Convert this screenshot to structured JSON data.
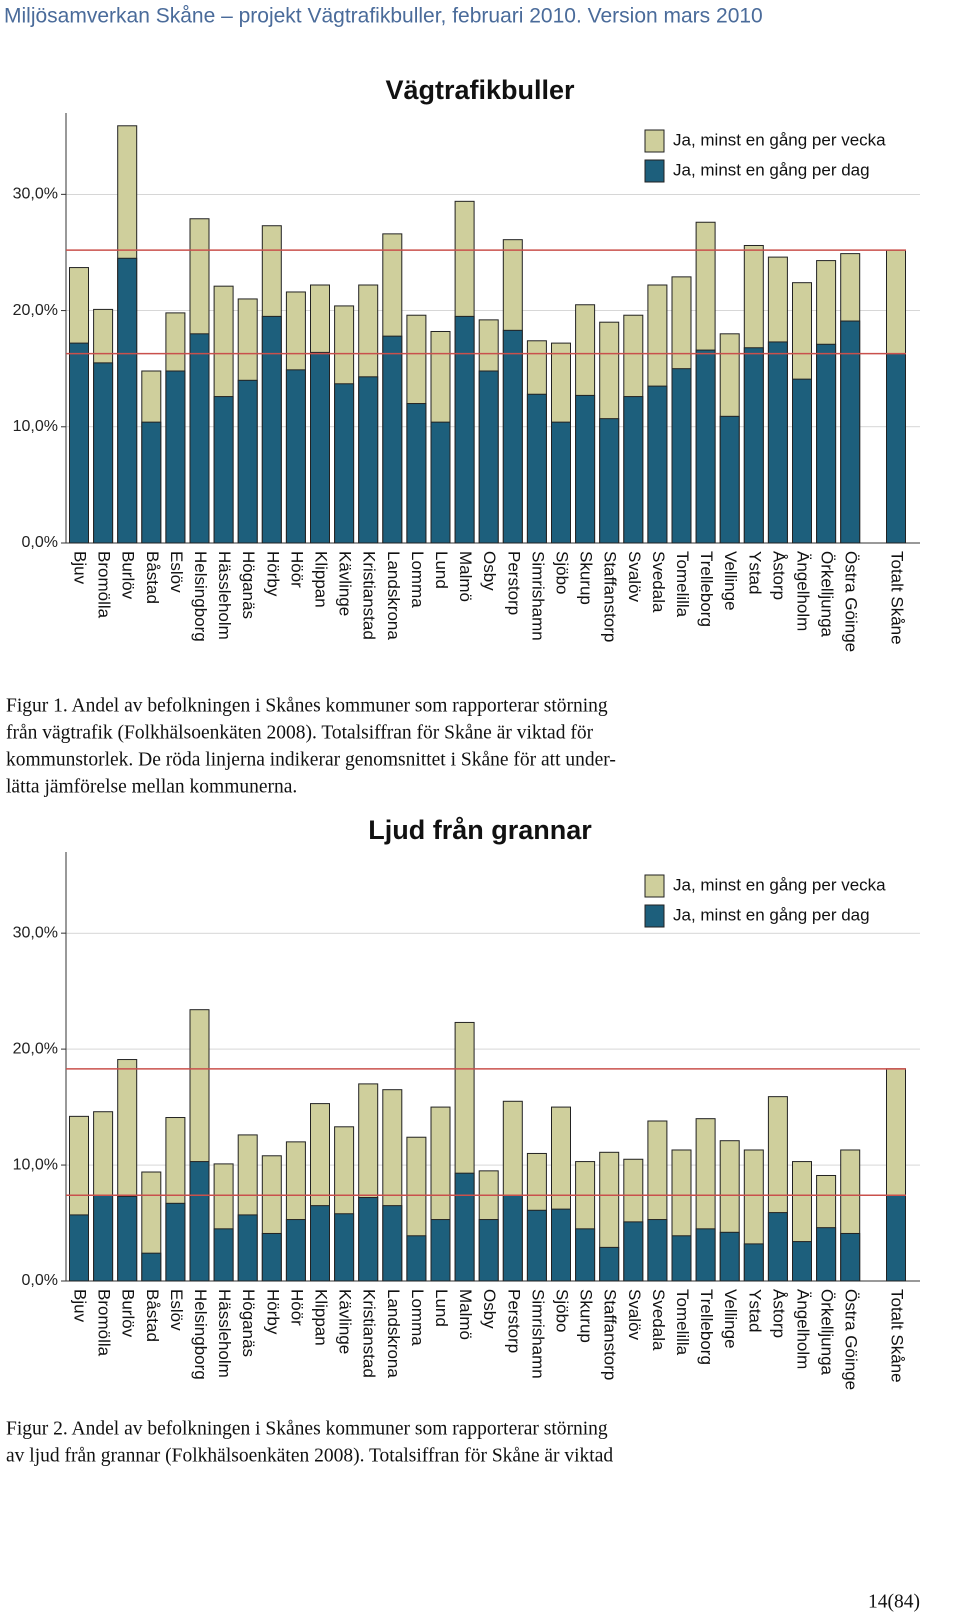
{
  "header": {
    "title": "Miljösamverkan Skåne – projekt Vägtrafikbuller, februari 2010. Version mars 2010"
  },
  "chart_data": [
    {
      "type": "bar",
      "barmode": "overlay",
      "title": "Vägtrafikbuller",
      "categories": [
        "Bjuv",
        "Bromölla",
        "Burlöv",
        "Båstad",
        "Eslöv",
        "Helsingborg",
        "Hässleholm",
        "Höganäs",
        "Hörby",
        "Höör",
        "Klippan",
        "Kävlinge",
        "Kristianstad",
        "Landskrona",
        "Lomma",
        "Lund",
        "Malmö",
        "Osby",
        "Perstorp",
        "Simrishamn",
        "Sjöbo",
        "Skurup",
        "Staffanstorp",
        "Svalöv",
        "Svedala",
        "Tomelilla",
        "Trelleborg",
        "Vellinge",
        "Ystad",
        "Åstorp",
        "Ängelholm",
        "Örkelljunga",
        "Östra Göinge",
        "Totalt Skåne"
      ],
      "series": [
        {
          "name": "Ja, minst en gång per vecka",
          "color": "#cfcf9c",
          "values": [
            23.7,
            20.1,
            35.9,
            14.8,
            19.8,
            27.9,
            22.1,
            21.0,
            27.3,
            21.6,
            22.2,
            20.4,
            22.2,
            26.6,
            19.6,
            18.2,
            29.4,
            19.2,
            26.1,
            17.4,
            17.2,
            20.5,
            19.0,
            19.6,
            22.2,
            22.9,
            27.6,
            18.0,
            25.6,
            24.6,
            22.4,
            24.3,
            24.9,
            25.2
          ]
        },
        {
          "name": "Ja, minst en gång per dag",
          "color": "#1d5f7c",
          "values": [
            17.2,
            15.5,
            24.5,
            10.4,
            14.8,
            18.0,
            12.6,
            14.0,
            19.5,
            14.9,
            16.4,
            13.7,
            14.3,
            17.8,
            12.0,
            10.4,
            19.5,
            14.8,
            18.3,
            12.8,
            10.4,
            12.7,
            10.7,
            12.6,
            13.5,
            15.0,
            16.6,
            10.9,
            16.8,
            17.3,
            14.1,
            17.1,
            19.1,
            16.3
          ]
        }
      ],
      "ylim": [
        0,
        37
      ],
      "yticks": [
        {
          "value": 0,
          "label": "0,0%"
        },
        {
          "value": 10,
          "label": "10,0%"
        },
        {
          "value": 20,
          "label": "20,0%"
        },
        {
          "value": 30,
          "label": "30,0%"
        }
      ],
      "grid": true,
      "legend": "top-right",
      "reference_lines": [
        {
          "value": 25.2,
          "color": "#c9504c"
        },
        {
          "value": 16.3,
          "color": "#c9504c"
        }
      ]
    },
    {
      "type": "bar",
      "barmode": "overlay",
      "title": "Ljud från grannar",
      "categories": [
        "Bjuv",
        "Bromölla",
        "Burlöv",
        "Båstad",
        "Eslöv",
        "Helsingborg",
        "Hässleholm",
        "Höganäs",
        "Hörby",
        "Höör",
        "Klippan",
        "Kävlinge",
        "Kristianstad",
        "Landskrona",
        "Lomma",
        "Lund",
        "Malmö",
        "Osby",
        "Perstorp",
        "Simrishamn",
        "Sjöbo",
        "Skurup",
        "Staffanstorp",
        "Svalöv",
        "Svedala",
        "Tomelilla",
        "Trelleborg",
        "Vellinge",
        "Ystad",
        "Åstorp",
        "Ängelholm",
        "Örkelljunga",
        "Östra Göinge",
        "Totalt Skåne"
      ],
      "series": [
        {
          "name": "Ja, minst en gång per vecka",
          "color": "#cfcf9c",
          "values": [
            14.2,
            14.6,
            19.1,
            9.4,
            14.1,
            23.4,
            10.1,
            12.6,
            10.8,
            12.0,
            15.3,
            13.3,
            17.0,
            16.5,
            12.4,
            15.0,
            22.3,
            9.5,
            15.5,
            11.0,
            15.0,
            10.3,
            11.1,
            10.5,
            13.8,
            11.3,
            14.0,
            12.1,
            11.3,
            15.9,
            10.3,
            9.1,
            11.3,
            18.3
          ]
        },
        {
          "name": "Ja, minst en gång per dag",
          "color": "#1d5f7c",
          "values": [
            5.7,
            7.4,
            7.3,
            2.4,
            6.7,
            10.3,
            4.5,
            5.7,
            4.1,
            5.3,
            6.5,
            5.8,
            7.2,
            6.5,
            3.9,
            5.3,
            9.3,
            5.3,
            7.4,
            6.1,
            6.2,
            4.5,
            2.9,
            5.1,
            5.3,
            3.9,
            4.5,
            4.2,
            3.2,
            5.9,
            3.4,
            4.6,
            4.1,
            7.4
          ]
        }
      ],
      "ylim": [
        0,
        37
      ],
      "yticks": [
        {
          "value": 0,
          "label": "0,0%"
        },
        {
          "value": 10,
          "label": "10,0%"
        },
        {
          "value": 20,
          "label": "20,0%"
        },
        {
          "value": 30,
          "label": "30,0%"
        }
      ],
      "grid": true,
      "legend": "top-right",
      "reference_lines": [
        {
          "value": 18.3,
          "color": "#c9504c"
        },
        {
          "value": 7.4,
          "color": "#c9504c"
        }
      ]
    }
  ],
  "captions": [
    [
      "Figur 1. Andel av befolkningen i Skånes kommuner som rapporterar störning",
      "från vägtrafik (Folkhälsoenkäten 2008). Totalsiffran för Skåne är viktad för",
      "kommunstorlek. De röda linjerna indikerar genomsnittet i Skåne för att under-",
      "lätta jämförelse mellan kommunerna."
    ],
    [
      "Figur 2. Andel av befolkningen i Skånes kommuner som rapporterar störning",
      "av ljud från grannar (Folkhälsoenkäten 2008). Totalsiffran för Skåne är viktad"
    ]
  ],
  "page_number": "14(84)"
}
